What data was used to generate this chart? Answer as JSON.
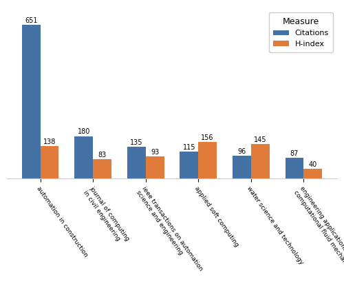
{
  "categories": [
    "automation in construction",
    "journal of computing\nin civil engineering",
    "ieee transactions on automation\nscience and engineering",
    "applied soft computing",
    "water science and technology",
    "engineering applications of\ncomputational fluid mechanics"
  ],
  "citations": [
    651,
    180,
    135,
    115,
    96,
    87
  ],
  "hindex": [
    138,
    83,
    93,
    156,
    145,
    40
  ],
  "citations_color": "#4472A4",
  "hindex_color": "#E07B39",
  "legend_title": "Measure",
  "legend_labels": [
    "Citations",
    "H-index"
  ],
  "bar_width": 0.35,
  "ylim": [
    0,
    720
  ],
  "figure_bg": "#ffffff",
  "axes_bg": "#ffffff",
  "spine_color": "#cccccc",
  "label_fontsize": 7.0,
  "tick_fontsize": 6.5,
  "bar_label_fontsize": 7.0
}
